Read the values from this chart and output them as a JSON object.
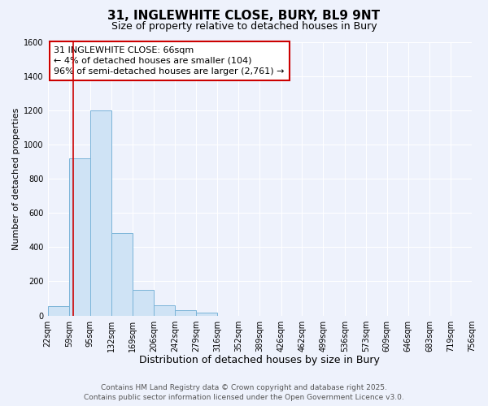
{
  "title": "31, INGLEWHITE CLOSE, BURY, BL9 9NT",
  "subtitle": "Size of property relative to detached houses in Bury",
  "xlabel": "Distribution of detached houses by size in Bury",
  "ylabel": "Number of detached properties",
  "bin_edges": [
    22,
    59,
    95,
    132,
    169,
    206,
    242,
    279,
    316,
    352,
    389,
    426,
    462,
    499,
    536,
    573,
    609,
    646,
    683,
    719,
    756
  ],
  "bar_heights": [
    55,
    920,
    1200,
    480,
    150,
    60,
    30,
    15,
    0,
    0,
    0,
    0,
    0,
    0,
    0,
    0,
    0,
    0,
    0,
    0
  ],
  "bar_face_color": "#cfe3f5",
  "bar_edge_color": "#7ab4d8",
  "property_line_x": 66,
  "property_line_color": "#cc0000",
  "annotation_text": "31 INGLEWHITE CLOSE: 66sqm\n← 4% of detached houses are smaller (104)\n96% of semi-detached houses are larger (2,761) →",
  "annotation_box_color": "#ffffff",
  "annotation_box_edge_color": "#cc0000",
  "ylim": [
    0,
    1600
  ],
  "yticks": [
    0,
    200,
    400,
    600,
    800,
    1000,
    1200,
    1400,
    1600
  ],
  "background_color": "#eef2fc",
  "grid_color": "#ffffff",
  "footer_line1": "Contains HM Land Registry data © Crown copyright and database right 2025.",
  "footer_line2": "Contains public sector information licensed under the Open Government Licence v3.0.",
  "title_fontsize": 11,
  "subtitle_fontsize": 9,
  "xlabel_fontsize": 9,
  "ylabel_fontsize": 8,
  "tick_fontsize": 7,
  "annotation_fontsize": 8,
  "footer_fontsize": 6.5
}
